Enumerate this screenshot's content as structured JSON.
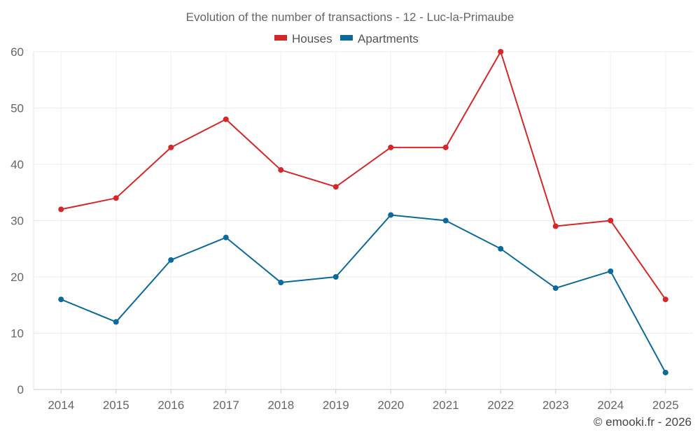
{
  "chart_data": {
    "type": "line",
    "title": "Evolution of the number of transactions - 12 - Luc-la-Primaube",
    "categories": [
      "2014",
      "2015",
      "2016",
      "2017",
      "2018",
      "2019",
      "2020",
      "2021",
      "2022",
      "2023",
      "2024",
      "2025"
    ],
    "series": [
      {
        "name": "Houses",
        "color": "#d62728",
        "values": [
          32,
          34,
          43,
          48,
          39,
          36,
          43,
          43,
          60,
          29,
          30,
          16
        ]
      },
      {
        "name": "Apartments",
        "color": "#0b6a9b",
        "values": [
          16,
          12,
          23,
          27,
          19,
          20,
          31,
          30,
          25,
          18,
          21,
          3
        ]
      }
    ],
    "ylim": [
      0,
      60
    ],
    "yticks": [
      0,
      10,
      20,
      30,
      40,
      50,
      60
    ],
    "xlabel": "",
    "ylabel": "",
    "grid": true,
    "legend": "top-center"
  },
  "credit": "© emooki.fr - 2026"
}
